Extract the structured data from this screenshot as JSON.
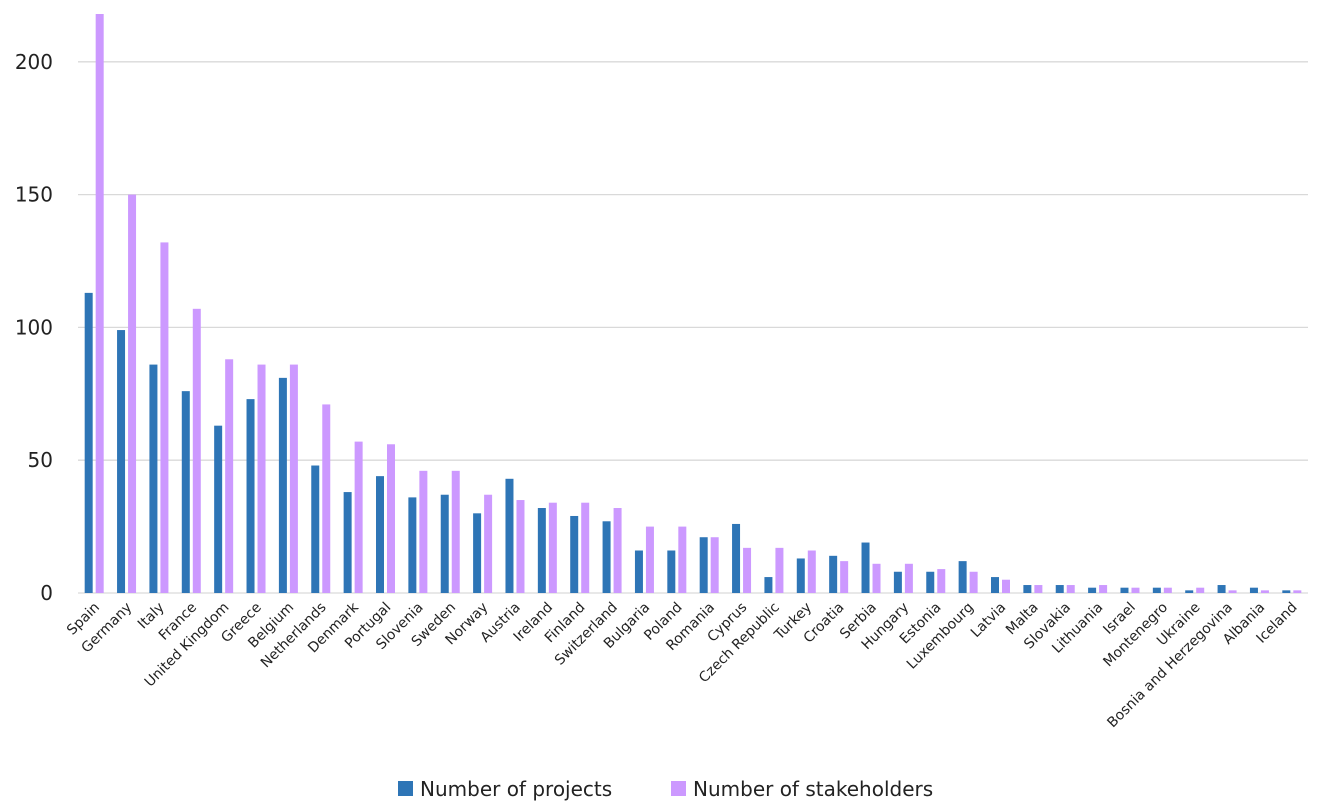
{
  "chart_data": {
    "type": "bar",
    "title": "",
    "xlabel": "",
    "ylabel": "",
    "ylim": [
      0,
      218
    ],
    "yticks": [
      0,
      50,
      100,
      150,
      200
    ],
    "grid": true,
    "legend_position": "bottom",
    "categories": [
      "Spain",
      "Germany",
      "Italy",
      "France",
      "United Kingdom",
      "Greece",
      "Belgium",
      "Netherlands",
      "Denmark",
      "Portugal",
      "Slovenia",
      "Sweden",
      "Norway",
      "Austria",
      "Ireland",
      "Finland",
      "Switzerland",
      "Bulgaria",
      "Poland",
      "Romania",
      "Cyprus",
      "Czech Republic",
      "Turkey",
      "Croatia",
      "Serbia",
      "Hungary",
      "Estonia",
      "Luxembourg",
      "Latvia",
      "Malta",
      "Slovakia",
      "Lithuania",
      "Israel",
      "Montenegro",
      "Ukraine",
      "Bosnia and Herzegovina",
      "Albania",
      "Iceland"
    ],
    "series": [
      {
        "name": "Number of projects",
        "color": "#2e75b6",
        "values": [
          113,
          99,
          86,
          76,
          63,
          73,
          81,
          48,
          38,
          44,
          36,
          37,
          30,
          43,
          32,
          29,
          27,
          16,
          16,
          21,
          26,
          6,
          13,
          14,
          19,
          8,
          8,
          12,
          6,
          3,
          3,
          2,
          2,
          2,
          1,
          3,
          2,
          1
        ]
      },
      {
        "name": "Number of stakeholders",
        "color": "#cc99ff",
        "values": [
          218,
          150,
          132,
          107,
          88,
          86,
          86,
          71,
          57,
          56,
          46,
          46,
          37,
          35,
          34,
          34,
          32,
          25,
          25,
          21,
          17,
          17,
          16,
          12,
          11,
          11,
          9,
          8,
          5,
          3,
          3,
          3,
          2,
          2,
          2,
          1,
          1,
          1
        ]
      }
    ]
  }
}
